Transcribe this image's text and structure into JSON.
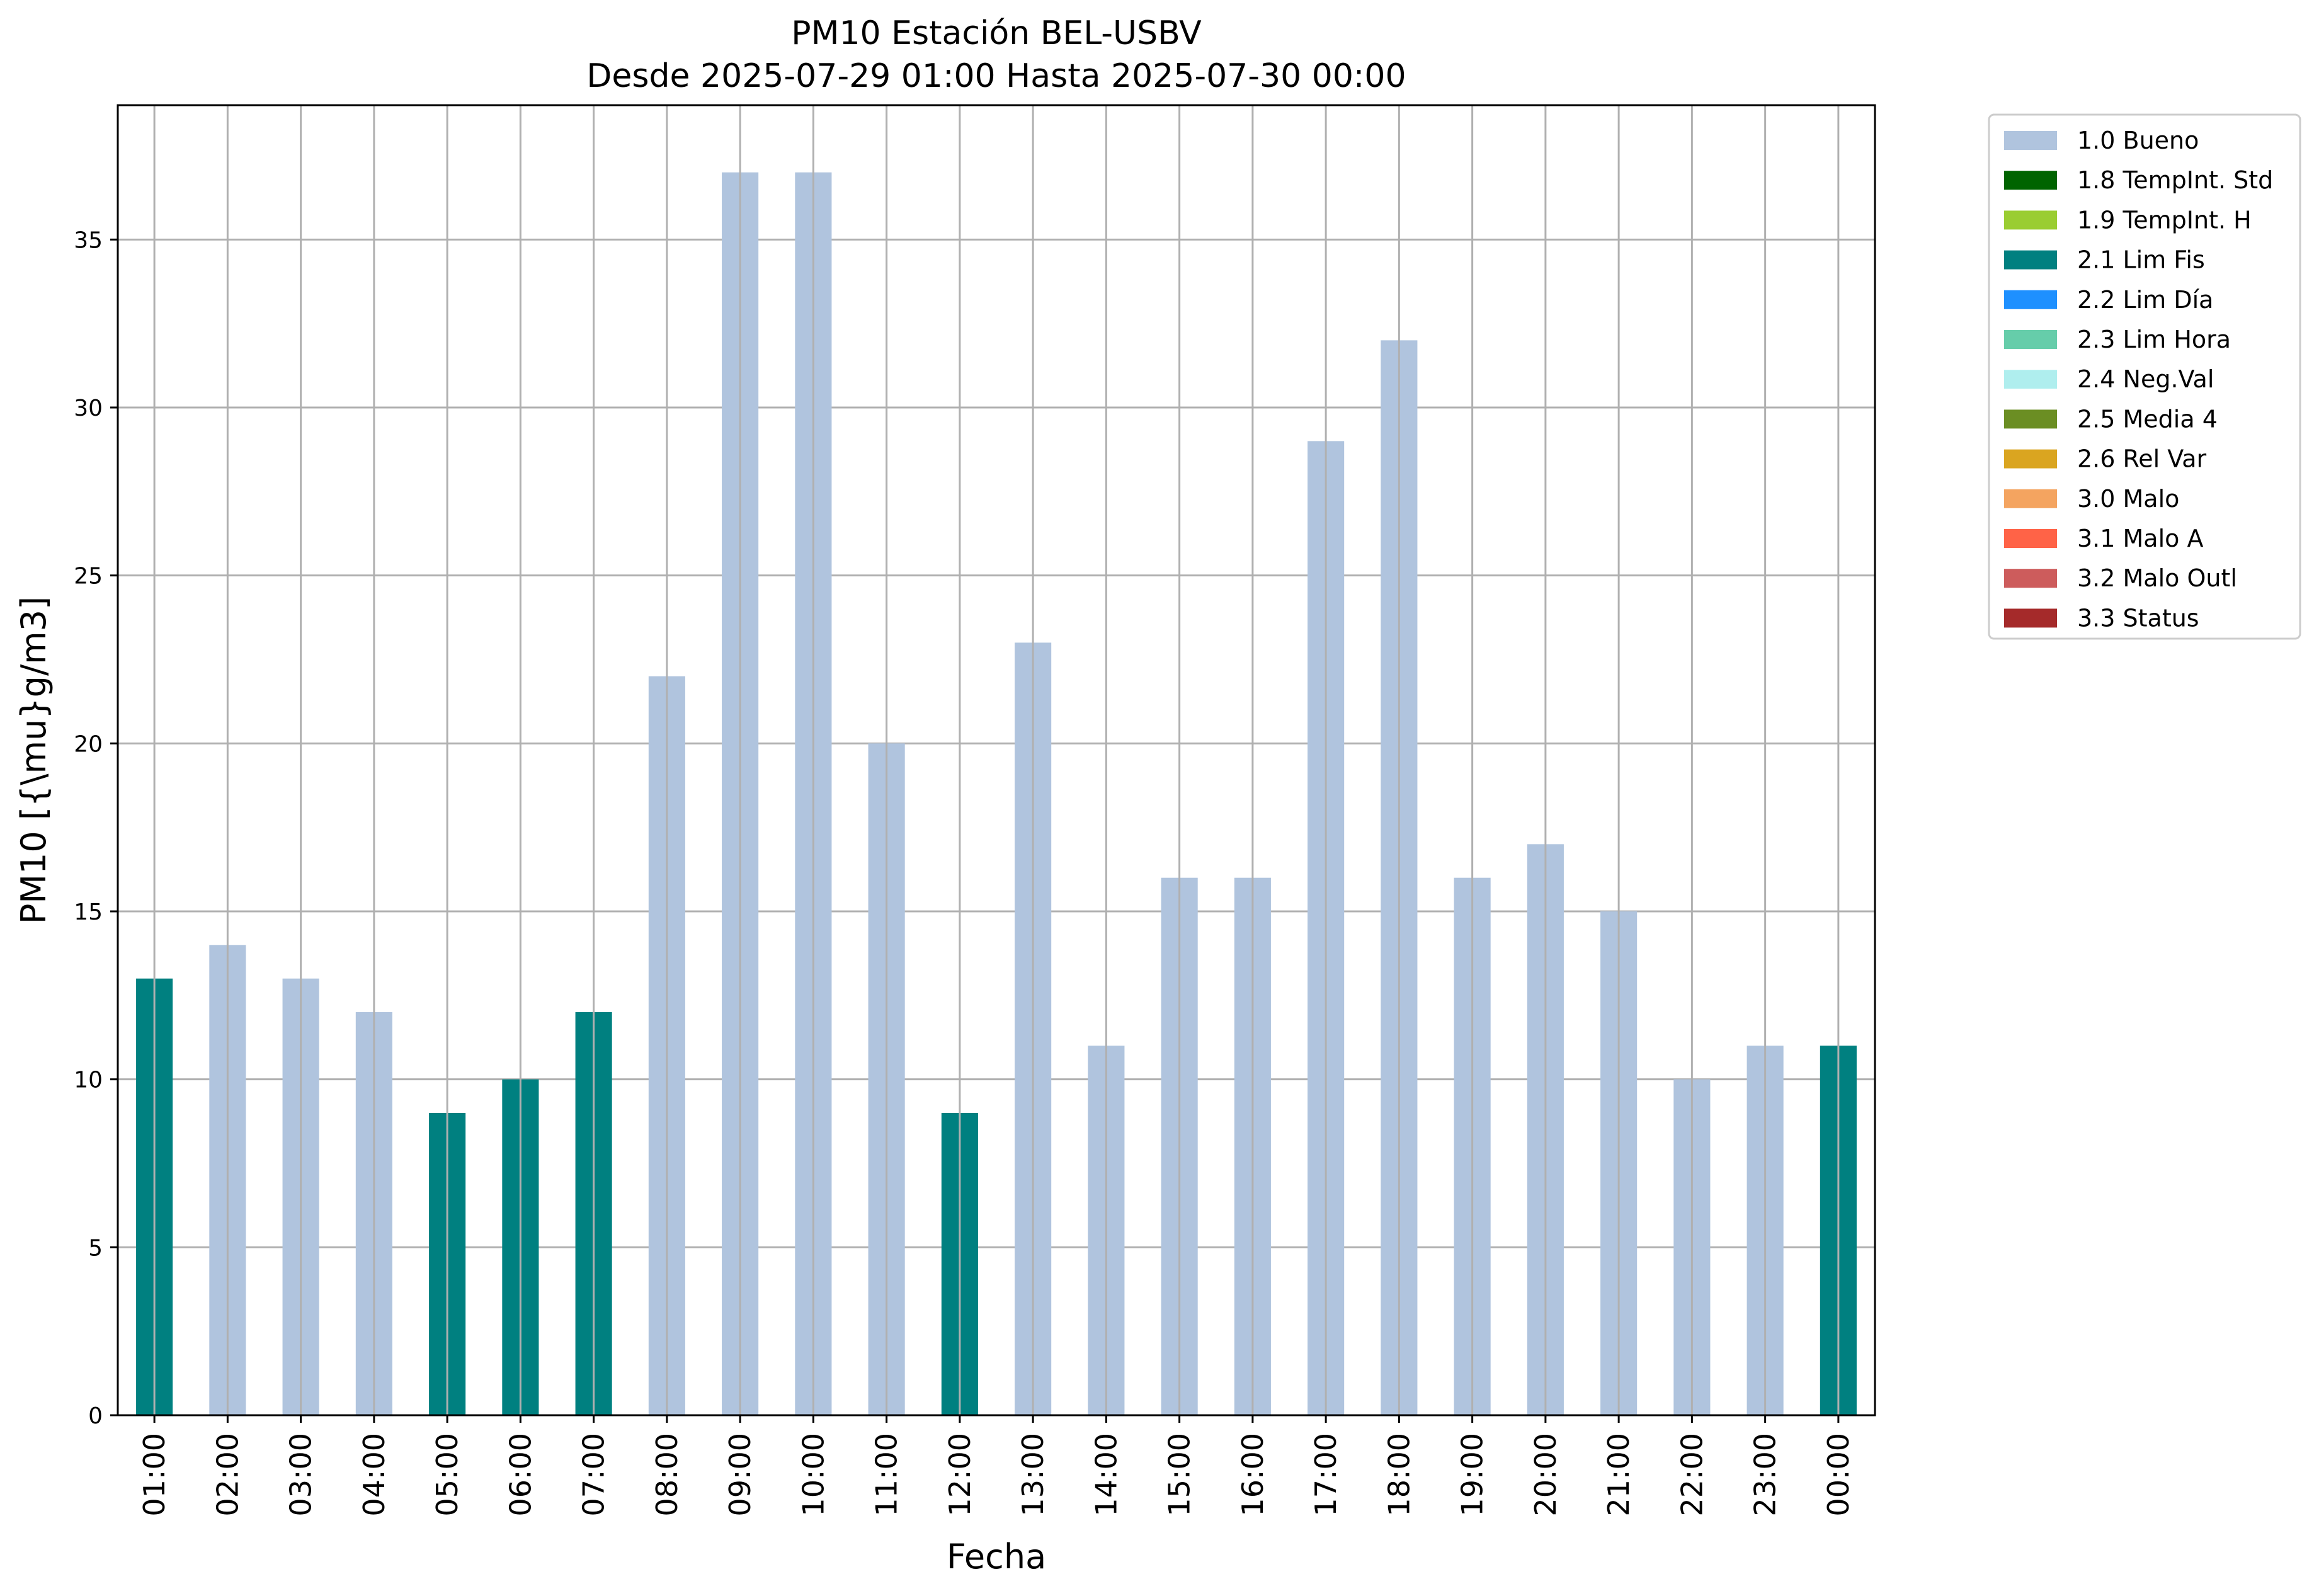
{
  "chart_data": {
    "type": "bar",
    "title": "PM10 Estación BEL-USBV",
    "subtitle": "Desde 2025-07-29 01:00 Hasta 2025-07-30 00:00",
    "xlabel": "Fecha",
    "ylabel": "PM10 [{\\mu}g/m3]",
    "ylim": [
      0,
      39
    ],
    "yticks": [
      0,
      5,
      10,
      15,
      20,
      25,
      30,
      35
    ],
    "grid": true,
    "legend_position": "outside-top-right",
    "categories": [
      "01:00",
      "02:00",
      "03:00",
      "04:00",
      "05:00",
      "06:00",
      "07:00",
      "08:00",
      "09:00",
      "10:00",
      "11:00",
      "12:00",
      "13:00",
      "14:00",
      "15:00",
      "16:00",
      "17:00",
      "18:00",
      "19:00",
      "20:00",
      "21:00",
      "22:00",
      "23:00",
      "00:00"
    ],
    "values": [
      13,
      14,
      13,
      12,
      9,
      10,
      12,
      22,
      37,
      37,
      20,
      9,
      23,
      11,
      16,
      16,
      29,
      32,
      16,
      17,
      15,
      10,
      11,
      11
    ],
    "flags": [
      "2.1 Lim Fis",
      "1.0 Bueno",
      "1.0 Bueno",
      "1.0 Bueno",
      "2.1 Lim Fis",
      "2.1 Lim Fis",
      "2.1 Lim Fis",
      "1.0 Bueno",
      "1.0 Bueno",
      "1.0 Bueno",
      "1.0 Bueno",
      "2.1 Lim Fis",
      "1.0 Bueno",
      "1.0 Bueno",
      "1.0 Bueno",
      "1.0 Bueno",
      "1.0 Bueno",
      "1.0 Bueno",
      "1.0 Bueno",
      "1.0 Bueno",
      "1.0 Bueno",
      "1.0 Bueno",
      "1.0 Bueno",
      "2.1 Lim Fis"
    ],
    "legend": [
      {
        "label": "1.0 Bueno",
        "color": "#b0c4de"
      },
      {
        "label": "1.8 TempInt. Std",
        "color": "#006400"
      },
      {
        "label": "1.9 TempInt. H",
        "color": "#9acd32"
      },
      {
        "label": "2.1 Lim Fis",
        "color": "#008080"
      },
      {
        "label": "2.2 Lim Día",
        "color": "#1e90ff"
      },
      {
        "label": "2.3 Lim Hora",
        "color": "#66cdaa"
      },
      {
        "label": "2.4 Neg.Val",
        "color": "#afeeee"
      },
      {
        "label": "2.5 Media 4",
        "color": "#6b8e23"
      },
      {
        "label": "2.6 Rel Var",
        "color": "#daa520"
      },
      {
        "label": "3.0 Malo",
        "color": "#f4a460"
      },
      {
        "label": "3.1 Malo A",
        "color": "#ff6347"
      },
      {
        "label": "3.2 Malo Outl",
        "color": "#cd5c5c"
      },
      {
        "label": "3.3 Status",
        "color": "#a52a2a"
      }
    ]
  }
}
